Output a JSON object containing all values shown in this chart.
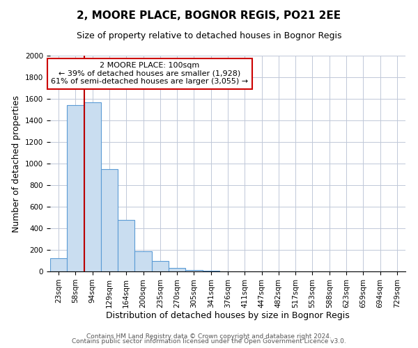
{
  "title": "2, MOORE PLACE, BOGNOR REGIS, PO21 2EE",
  "subtitle": "Size of property relative to detached houses in Bognor Regis",
  "xlabel": "Distribution of detached houses by size in Bognor Regis",
  "ylabel": "Number of detached properties",
  "bar_labels": [
    "23sqm",
    "58sqm",
    "94sqm",
    "129sqm",
    "164sqm",
    "200sqm",
    "235sqm",
    "270sqm",
    "305sqm",
    "341sqm",
    "376sqm",
    "411sqm",
    "447sqm",
    "482sqm",
    "517sqm",
    "553sqm",
    "588sqm",
    "623sqm",
    "659sqm",
    "694sqm",
    "729sqm"
  ],
  "bar_values": [
    120,
    1540,
    1570,
    950,
    480,
    190,
    100,
    35,
    15,
    5,
    2,
    0,
    0,
    0,
    0,
    0,
    0,
    0,
    0,
    0,
    0
  ],
  "bar_color": "#c9ddf0",
  "bar_edge_color": "#5b9bd5",
  "vline_x": 2.0,
  "vline_color": "#bb0000",
  "annotation_title": "2 MOORE PLACE: 100sqm",
  "annotation_line1": "← 39% of detached houses are smaller (1,928)",
  "annotation_line2": "61% of semi-detached houses are larger (3,055) →",
  "annotation_box_color": "#ffffff",
  "annotation_box_edge": "#cc0000",
  "ylim": [
    0,
    2000
  ],
  "yticks": [
    0,
    200,
    400,
    600,
    800,
    1000,
    1200,
    1400,
    1600,
    1800,
    2000
  ],
  "footer1": "Contains HM Land Registry data © Crown copyright and database right 2024.",
  "footer2": "Contains public sector information licensed under the Open Government Licence v3.0.",
  "background_color": "#ffffff",
  "grid_color": "#c0c8d8",
  "title_fontsize": 11,
  "subtitle_fontsize": 9,
  "xlabel_fontsize": 9,
  "ylabel_fontsize": 9,
  "tick_fontsize": 7.5,
  "annotation_fontsize": 8,
  "footer_fontsize": 6.5
}
